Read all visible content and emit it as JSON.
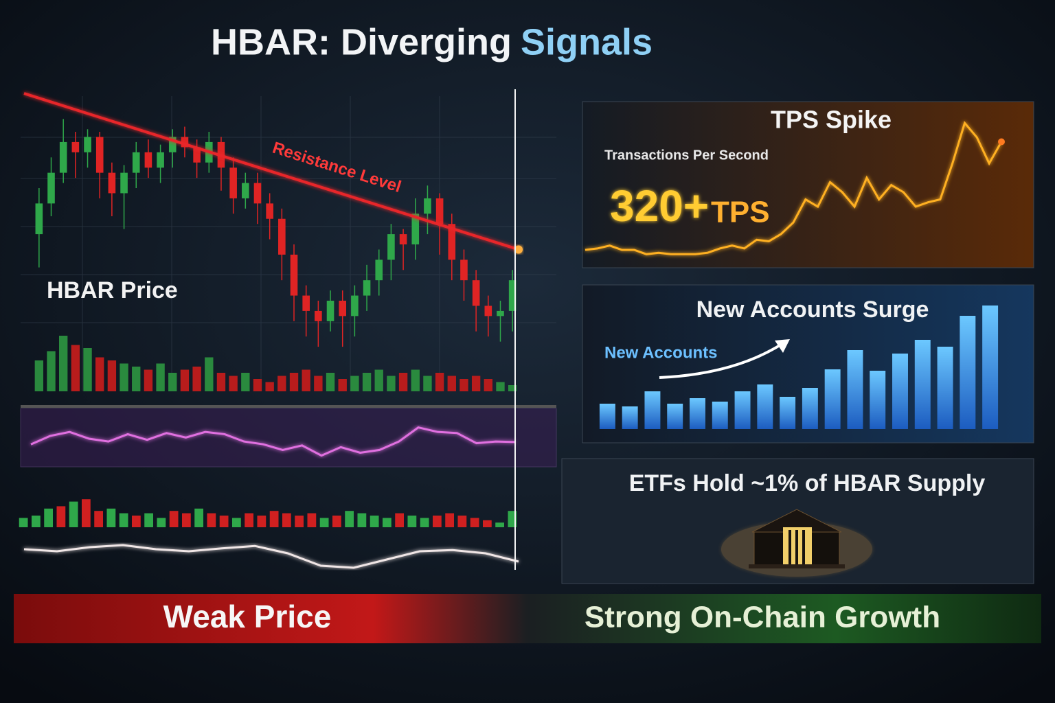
{
  "title": {
    "main": "HBAR: Diverging",
    "accent": "Signals"
  },
  "etf": {
    "text": "ETFs Hold ~1% of HBAR Supply"
  },
  "footer": {
    "left": "Weak Price",
    "right": "Strong On-Chain Growth"
  },
  "chart_data": [
    {
      "type": "candlestick",
      "label": "HBAR Price",
      "ylim": [
        0,
        110
      ],
      "up_color": "#2fa84a",
      "down_color": "#e02424",
      "open": [
        48,
        60,
        72,
        84,
        80,
        86,
        72,
        64,
        72,
        80,
        74,
        80,
        86,
        82,
        76,
        84,
        74,
        62,
        68,
        60,
        54,
        40,
        24,
        18,
        14,
        22,
        16,
        24,
        30,
        38,
        48,
        44,
        56,
        62,
        52,
        38,
        30,
        20,
        16,
        18
      ],
      "close": [
        60,
        72,
        84,
        80,
        86,
        72,
        64,
        72,
        80,
        74,
        80,
        86,
        82,
        76,
        84,
        74,
        62,
        68,
        60,
        54,
        40,
        24,
        18,
        14,
        22,
        16,
        24,
        30,
        38,
        48,
        44,
        56,
        62,
        52,
        38,
        30,
        20,
        16,
        18,
        30
      ],
      "high": [
        66,
        78,
        93,
        88,
        89,
        88,
        76,
        75,
        84,
        85,
        83,
        89,
        90,
        85,
        88,
        86,
        78,
        72,
        72,
        64,
        58,
        44,
        28,
        22,
        26,
        26,
        28,
        36,
        42,
        52,
        50,
        62,
        67,
        64,
        56,
        42,
        34,
        24,
        22,
        34
      ],
      "low": [
        35,
        55,
        68,
        70,
        74,
        62,
        55,
        50,
        66,
        70,
        68,
        74,
        78,
        70,
        72,
        65,
        56,
        58,
        52,
        46,
        30,
        14,
        8,
        4,
        10,
        4,
        8,
        18,
        24,
        30,
        34,
        38,
        48,
        40,
        30,
        22,
        10,
        8,
        6,
        10
      ],
      "annotation": {
        "text": "Resistance Level",
        "values": [
          103,
          42
        ]
      }
    },
    {
      "type": "bar",
      "ylim": [
        0,
        100
      ],
      "up_color": "#2a8a3e",
      "down_color": "#b81c1c",
      "values": [
        50,
        65,
        90,
        75,
        70,
        55,
        50,
        45,
        40,
        35,
        45,
        30,
        35,
        40,
        55,
        30,
        25,
        30,
        20,
        15,
        25,
        30,
        35,
        25,
        30,
        20,
        25,
        30,
        35,
        25,
        30,
        35,
        25,
        30,
        25,
        20,
        25,
        20,
        15,
        10
      ]
    },
    {
      "type": "line",
      "ylim": [
        0,
        100
      ],
      "color": "#e070e0",
      "values": [
        40,
        55,
        62,
        50,
        45,
        58,
        48,
        60,
        52,
        62,
        58,
        45,
        40,
        30,
        38,
        20,
        35,
        25,
        30,
        45,
        70,
        62,
        60,
        42,
        45,
        44
      ]
    },
    {
      "type": "bar",
      "ylim": [
        0,
        100
      ],
      "up_color": "#2fa84a",
      "down_color": "#d02020",
      "values": [
        20,
        25,
        40,
        45,
        55,
        60,
        35,
        40,
        30,
        25,
        30,
        20,
        35,
        30,
        40,
        30,
        25,
        20,
        30,
        25,
        35,
        30,
        25,
        30,
        20,
        25,
        35,
        30,
        25,
        20,
        30,
        25,
        20,
        25,
        30,
        25,
        20,
        15,
        10,
        35
      ]
    },
    {
      "type": "line",
      "ylim": [
        0,
        100
      ],
      "color": "#f0e6e6",
      "values": [
        50,
        45,
        55,
        60,
        50,
        45,
        52,
        58,
        40,
        10,
        5,
        25,
        45,
        48,
        40,
        20
      ]
    },
    {
      "type": "line",
      "title": "TPS Spike",
      "subtitle": "Transactions Per Second",
      "value_text": "320+",
      "unit_text": "TPS",
      "ylim": [
        0,
        100
      ],
      "color": "#ffb020",
      "values": [
        10,
        11,
        13,
        10,
        10,
        7,
        8,
        7,
        7,
        7,
        8,
        11,
        13,
        11,
        17,
        16,
        21,
        29,
        45,
        40,
        57,
        50,
        40,
        60,
        45,
        55,
        50,
        40,
        43,
        45,
        70,
        98,
        88,
        70,
        85
      ]
    },
    {
      "type": "bar",
      "title": "New Accounts Surge",
      "label": "New Accounts",
      "ylim": [
        0,
        200
      ],
      "color": "#2f8fe0",
      "values": [
        37,
        33,
        55,
        37,
        45,
        40,
        55,
        65,
        47,
        60,
        87,
        115,
        85,
        110,
        130,
        120,
        165,
        180
      ]
    }
  ]
}
